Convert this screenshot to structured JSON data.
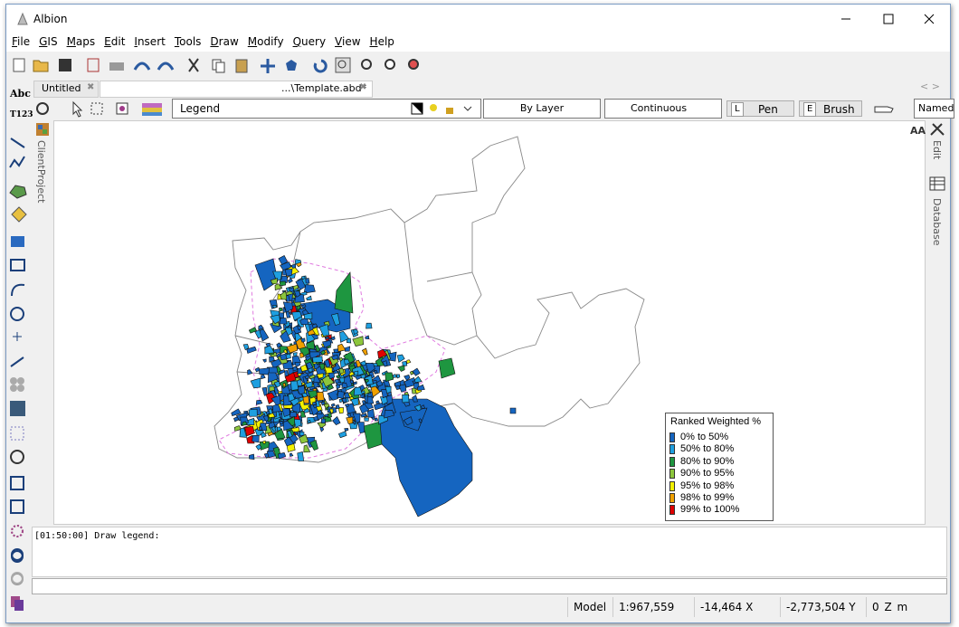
{
  "window": {
    "title": "Albion"
  },
  "menu": [
    "File",
    "GIS",
    "Maps",
    "Edit",
    "Insert",
    "Tools",
    "Draw",
    "Modify",
    "Query",
    "View",
    "Help"
  ],
  "tabs": [
    "Untitled",
    "...\\Template.abd*"
  ],
  "toolbar": {
    "layer": "Legend",
    "pen_style": "By Layer",
    "line_type": "Continuous",
    "pen_key": "L",
    "pen": "Pen",
    "brush_key": "E",
    "brush": "Brush",
    "named": "Named"
  },
  "left_tools": {
    "text": "Abc",
    "numbered_text": "T123"
  },
  "side_panels": {
    "left": "ClientProject",
    "right": [
      "Edit",
      "Database"
    ],
    "font_button": "AA"
  },
  "legend": {
    "title": "Ranked Weighted %",
    "items": [
      {
        "label": "0% to 50%",
        "color": "#1565c0"
      },
      {
        "label": "50% to 80%",
        "color": "#1e9fe0"
      },
      {
        "label": "80% to 90%",
        "color": "#1e9640"
      },
      {
        "label": "90% to 95%",
        "color": "#8cc63c"
      },
      {
        "label": "95% to 98%",
        "color": "#f2f000"
      },
      {
        "label": "98% to 99%",
        "color": "#f0a000"
      },
      {
        "label": "99% to 100%",
        "color": "#e00000"
      }
    ]
  },
  "log": {
    "lines": [
      "[01:50:00] Draw legend:"
    ]
  },
  "status": {
    "mode": "Model",
    "scale": "1:967,559",
    "x": "-14,464",
    "x_label": "X",
    "y": "-2,773,504",
    "y_label": "Y",
    "z": "0",
    "z_label": "Z",
    "unit": "m"
  }
}
